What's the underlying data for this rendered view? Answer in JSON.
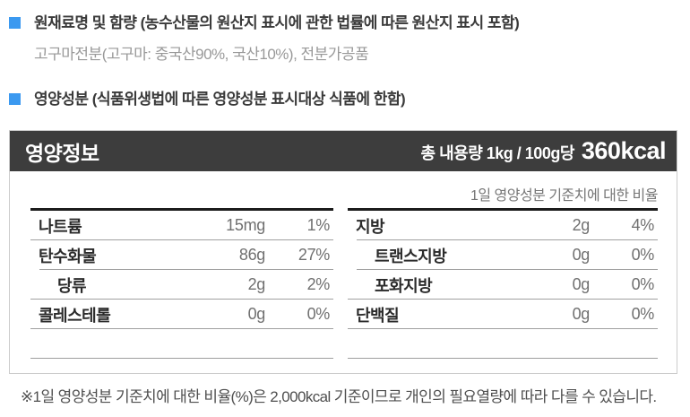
{
  "colors": {
    "accent_blue": "#3b99f0",
    "header_bg": "#3d3d3d",
    "divider_gray": "#a0a0a0"
  },
  "sections": [
    {
      "title": "원재료명 및 함량 (농수산물의 원산지 표시에 관한 법률에 따른 원산지 표시 포함)",
      "body": "고구마전분(고구마: 중국산90%, 국산10%), 전분가공품"
    },
    {
      "title": "영양성분 (식품위생법에 따른 영양성분 표시대상 식품에 한함)"
    }
  ],
  "label": {
    "title": "영양정보",
    "serving_prefix": "총 내용량 1kg / 100g당",
    "calories": "360kcal",
    "ratio_note": "1일 영양성분 기준치에 대한 비율",
    "columns": {
      "left": [
        {
          "name": "나트륨",
          "amount": "15mg",
          "percent": "1%",
          "sub": false,
          "border_indent": false
        },
        {
          "name": "탄수화물",
          "amount": "86g",
          "percent": "27%",
          "sub": false,
          "border_indent": true
        },
        {
          "name": "당류",
          "amount": "2g",
          "percent": "2%",
          "sub": true,
          "border_indent": false
        },
        {
          "name": "콜레스테롤",
          "amount": "0g",
          "percent": "0%",
          "sub": false,
          "border_indent": false
        }
      ],
      "right": [
        {
          "name": "지방",
          "amount": "2g",
          "percent": "4%",
          "sub": false,
          "border_indent": true
        },
        {
          "name": "트랜스지방",
          "amount": "0g",
          "percent": "0%",
          "sub": true,
          "border_indent": true
        },
        {
          "name": "포화지방",
          "amount": "0g",
          "percent": "0%",
          "sub": true,
          "border_indent": false
        },
        {
          "name": "단백질",
          "amount": "0g",
          "percent": "0%",
          "sub": false,
          "border_indent": false
        }
      ]
    },
    "footnote": "※1일 영양성분 기준치에 대한 비율(%)은 2,000kcal 기준이므로 개인의 필요열량에 따라 다를 수 있습니다."
  }
}
